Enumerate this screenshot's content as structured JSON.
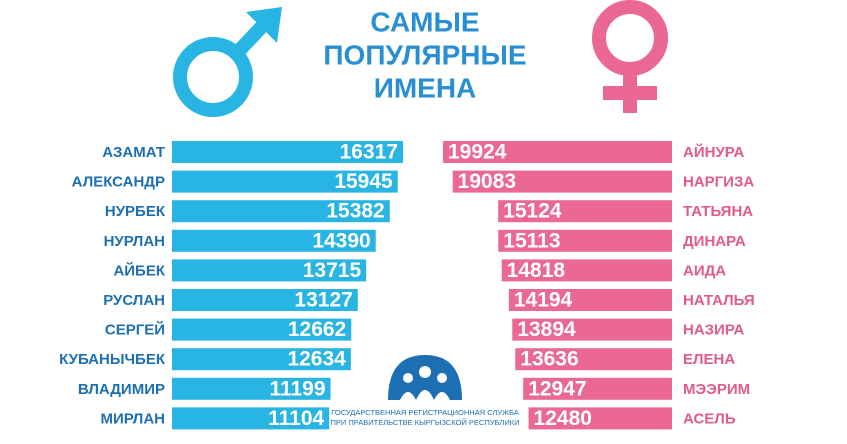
{
  "title": [
    "САМЫЕ",
    "ПОПУЛЯРНЫЕ",
    "ИМЕНА"
  ],
  "chart_data": [
    {
      "type": "bar",
      "align": "left",
      "color": "#29b5e3",
      "label_color": "#1d6fb3",
      "categories": [
        "АЗАМАТ",
        "АЛЕКСАНДР",
        "НУРБЕК",
        "НУРЛАН",
        "АЙБЕК",
        "РУСЛАН",
        "СЕРГЕЙ",
        "КУБАНЫЧБЕК",
        "ВЛАДИМИР",
        "МИРЛАН"
      ],
      "values": [
        16317,
        15945,
        15382,
        14390,
        13715,
        13127,
        12662,
        12634,
        11199,
        11104
      ]
    },
    {
      "type": "bar",
      "align": "right",
      "color": "#ea6893",
      "label_color": "#e05a8a",
      "categories": [
        "АЙНУРА",
        "НАРГИЗА",
        "ТАТЬЯНА",
        "ДИНАРА",
        "АИДА",
        "НАТАЛЬЯ",
        "НАЗИРА",
        "ЕЛЕНА",
        "МЭЭРИМ",
        "АСЕЛЬ"
      ],
      "values": [
        19924,
        19083,
        15124,
        15113,
        14818,
        14194,
        13894,
        13636,
        12947,
        12480
      ]
    }
  ],
  "footer": [
    "ГОСУДАРСТВЕННАЯ РЕГИСТРАЦИОННАЯ СЛУЖБА",
    "ПРИ ПРАВИТЕЛЬСТВЕ КЫРГЫЗСКОЙ РЕСПУБЛИКИ"
  ]
}
